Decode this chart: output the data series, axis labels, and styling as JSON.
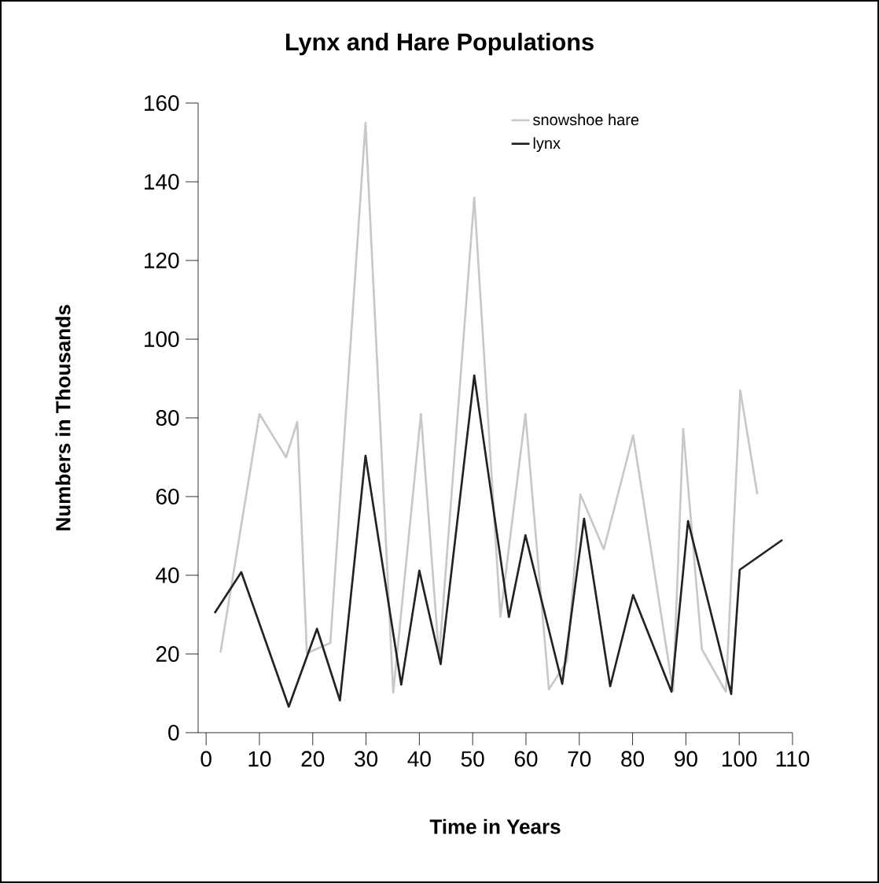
{
  "chart_data": {
    "type": "line",
    "title": "Lynx and Hare Populations",
    "xlabel": "Time in Years",
    "ylabel": "Numbers in Thousands",
    "xlim": [
      -1.5,
      110
    ],
    "ylim": [
      0,
      160
    ],
    "xticks": [
      0,
      10,
      20,
      30,
      40,
      50,
      60,
      70,
      80,
      90,
      100,
      110
    ],
    "yticks": [
      0,
      20,
      40,
      60,
      80,
      100,
      120,
      140,
      160
    ],
    "grid": false,
    "legend": "top right",
    "series": [
      {
        "name": "snowshoe hare",
        "color": "#c8c8c8",
        "x": [
          2.7,
          10,
          15,
          17.1,
          18.9,
          23.3,
          29.9,
          35.1,
          40.3,
          43.7,
          50.3,
          55.2,
          59.9,
          64.3,
          67.7,
          70.2,
          74.6,
          80.1,
          87.6,
          89.5,
          93,
          97.5,
          100.2,
          103.4
        ],
        "values": [
          20.4,
          81,
          70,
          79,
          20.2,
          22.8,
          155,
          10.2,
          81,
          19,
          136,
          29.5,
          81,
          11,
          18.2,
          60.6,
          46.6,
          75.6,
          10.6,
          77.2,
          21.2,
          10.4,
          87,
          60.6
        ]
      },
      {
        "name": "lynx",
        "color": "#222222",
        "x": [
          1.6,
          6.6,
          15.5,
          20.8,
          25.1,
          29.9,
          36.6,
          40,
          44,
          50.3,
          56.8,
          59.9,
          66.8,
          70.9,
          75.8,
          80.1,
          87.3,
          90.4,
          98.5,
          100.1,
          108.1
        ],
        "values": [
          30.4,
          40.8,
          6.6,
          26.4,
          8.2,
          70.4,
          12.2,
          41.2,
          17.4,
          90.8,
          29.4,
          50.2,
          12.4,
          54.4,
          11.8,
          35,
          10.4,
          53.8,
          9.8,
          41.4,
          49
        ]
      }
    ]
  }
}
